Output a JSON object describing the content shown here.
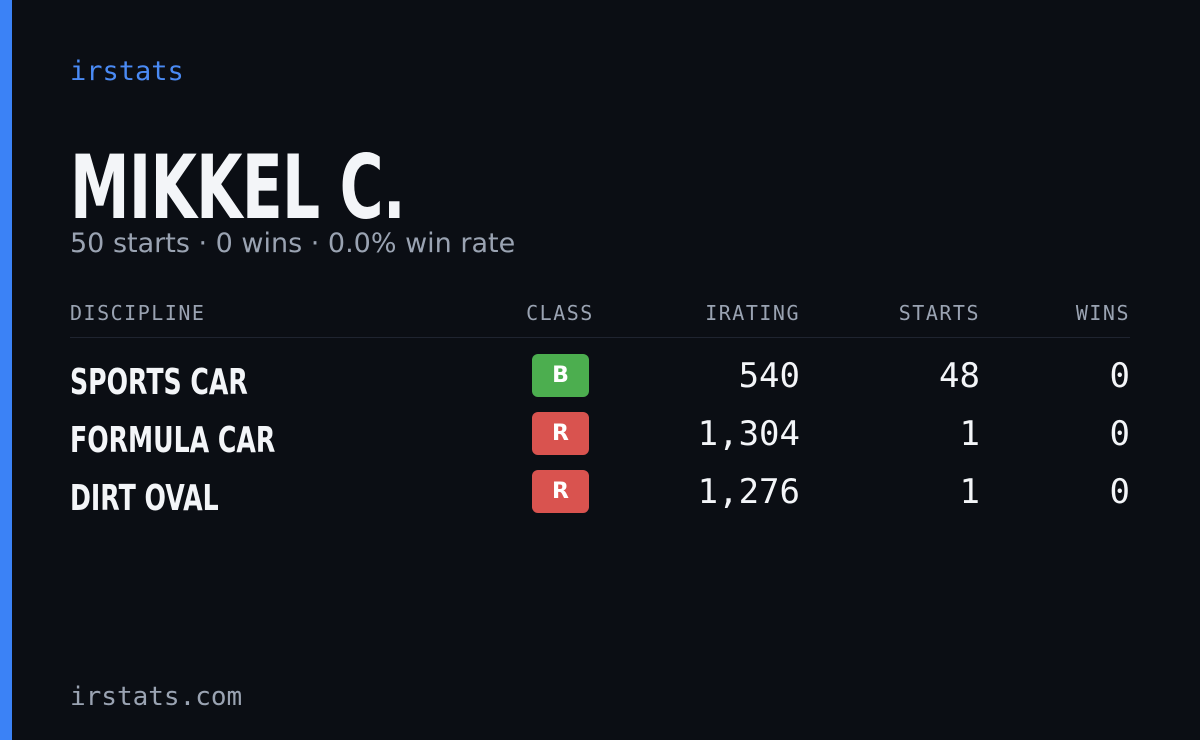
{
  "brand": "irstats",
  "name": "MIKKEL C.",
  "summary": "50 starts · 0 wins · 0.0% win rate",
  "table": {
    "headers": [
      "DISCIPLINE",
      "CLASS",
      "IRATING",
      "STARTS",
      "WINS"
    ],
    "rows": [
      {
        "discipline": "SPORTS CAR",
        "class": "B",
        "class_color": "#4cae4f",
        "irating": "540",
        "starts": "48",
        "wins": "0"
      },
      {
        "discipline": "FORMULA CAR",
        "class": "R",
        "class_color": "#d9534f",
        "irating": "1,304",
        "starts": "1",
        "wins": "0"
      },
      {
        "discipline": "DIRT OVAL",
        "class": "R",
        "class_color": "#d9534f",
        "irating": "1,276",
        "starts": "1",
        "wins": "0"
      }
    ]
  },
  "footer": "irstats.com"
}
